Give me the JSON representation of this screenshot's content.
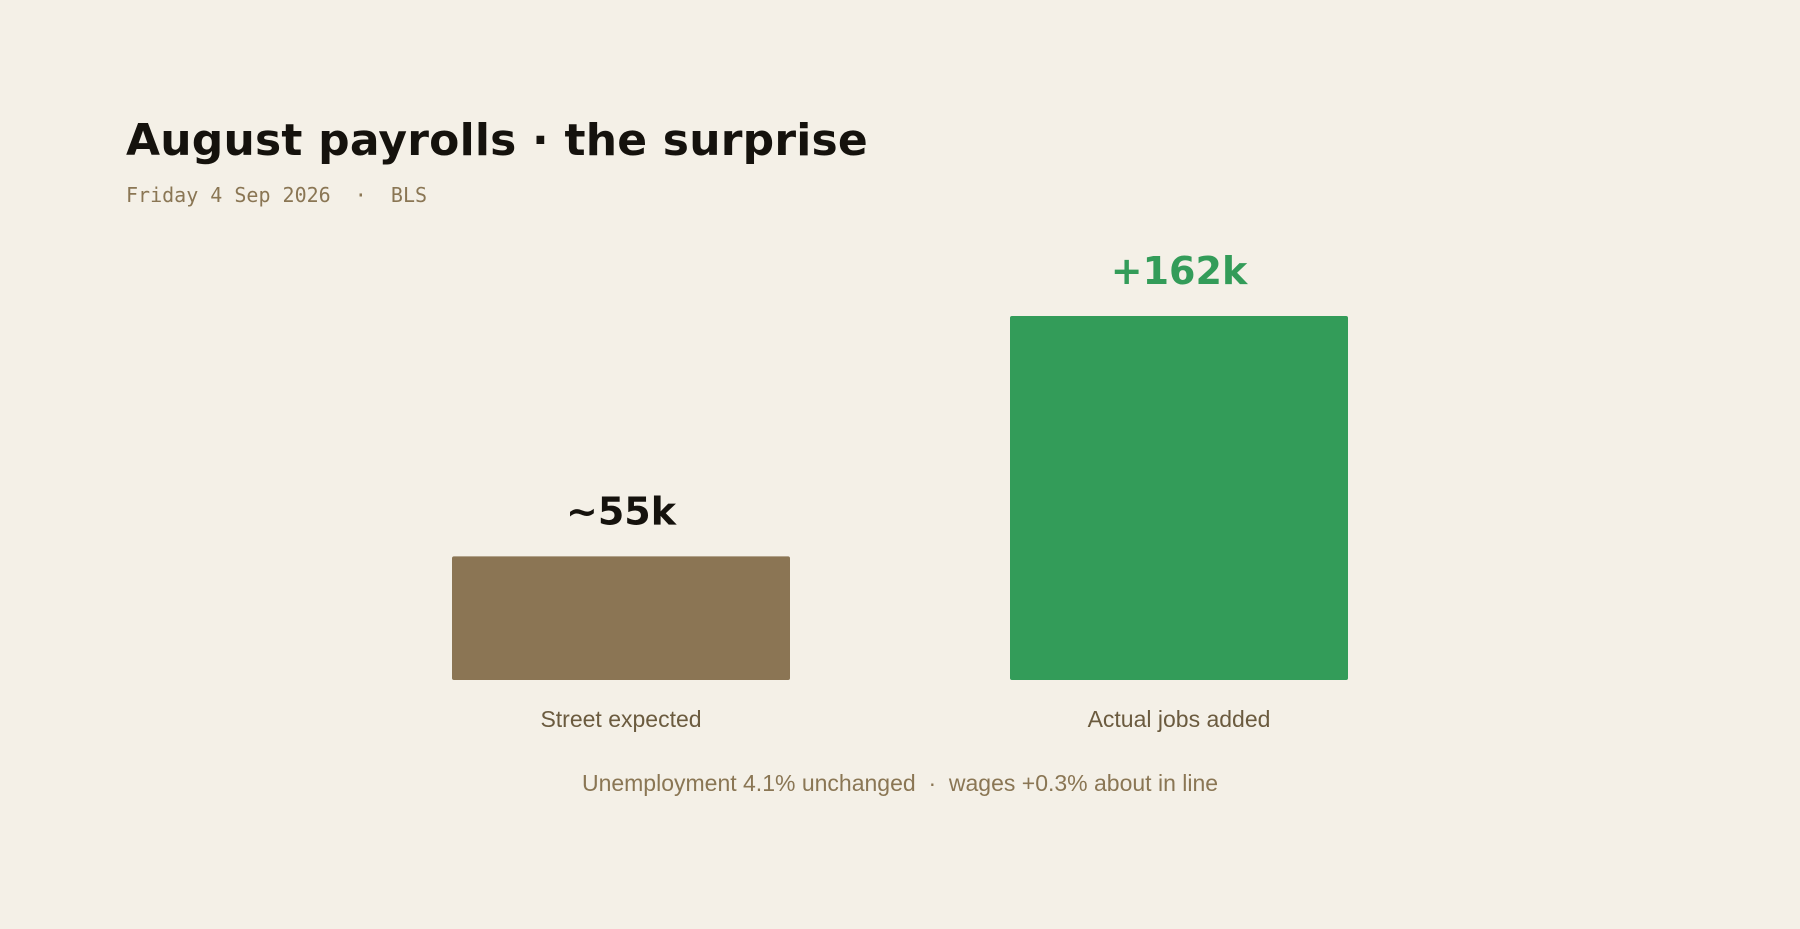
{
  "header": {
    "title": "August payrolls · the surprise",
    "subtitle": "Friday 4 Sep 2026  ·  BLS"
  },
  "chart_data": {
    "type": "bar",
    "categories": [
      "Street expected",
      "Actual jobs added"
    ],
    "values": [
      55,
      162
    ],
    "value_labels": [
      "~55k",
      "+162k"
    ],
    "units": "thousand jobs",
    "bar_colors": [
      "#8b7554",
      "#339c59"
    ],
    "label_colors": [
      "#15120d",
      "#339c59"
    ],
    "grid": false,
    "legend": "none"
  },
  "footnote": "Unemployment 4.1% unchanged  ·  wages +0.3% about in line"
}
